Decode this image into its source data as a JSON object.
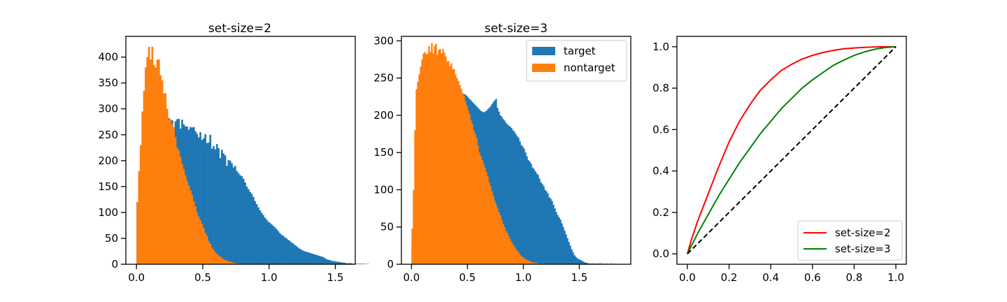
{
  "colors": {
    "target": "#1f77b4",
    "nontarget": "#ff7f0e",
    "set2": "#ff0000",
    "set3": "#008000",
    "diagonal": "#000000"
  },
  "chart_data": [
    {
      "type": "bar",
      "title": "set-size=2",
      "xlim": [
        -0.08,
        1.65
      ],
      "ylim": [
        0,
        440
      ],
      "xticks": [
        0.0,
        0.5,
        1.0,
        1.5
      ],
      "xtick_labels": [
        "0.0",
        "0.5",
        "1.0",
        "1.5"
      ],
      "yticks": [
        0,
        50,
        100,
        150,
        200,
        250,
        300,
        350,
        400
      ],
      "bin_width": 0.0125,
      "series": [
        {
          "key": "target",
          "x0": 0.0,
          "values": [
            120,
            170,
            195,
            225,
            240,
            255,
            262,
            268,
            272,
            275,
            276,
            276,
            274,
            272,
            270,
            268,
            266,
            275,
            283,
            282,
            280,
            278,
            250,
            276,
            280,
            281,
            262,
            279,
            270,
            266,
            266,
            260,
            265,
            264,
            265,
            257,
            252,
            245,
            255,
            240,
            243,
            251,
            234,
            235,
            250,
            223,
            228,
            222,
            232,
            224,
            205,
            221,
            214,
            210,
            190,
            201,
            200,
            195,
            187,
            190,
            180,
            176,
            172,
            170,
            165,
            158,
            150,
            145,
            140,
            136,
            130,
            122,
            116,
            110,
            104,
            99,
            95,
            90,
            86,
            82,
            80,
            77,
            74,
            71,
            68,
            64,
            60,
            57,
            55,
            52,
            50,
            47,
            45,
            42,
            40,
            37,
            35,
            32,
            30,
            28,
            26,
            25,
            24,
            23,
            22,
            21,
            20,
            19,
            18,
            17,
            16,
            15,
            14,
            12,
            10,
            9,
            8,
            7,
            6,
            6,
            5,
            5,
            4,
            4,
            3,
            3,
            2,
            2,
            2,
            2,
            1,
            1,
            1,
            1,
            1,
            1,
            1,
            1,
            0,
            1
          ]
        },
        {
          "key": "nontarget",
          "x0": 0.0,
          "values": [
            120,
            180,
            230,
            295,
            335,
            380,
            400,
            420,
            395,
            420,
            385,
            380,
            395,
            395,
            365,
            355,
            330,
            330,
            300,
            280,
            280,
            270,
            265,
            245,
            225,
            220,
            208,
            194,
            184,
            172,
            161,
            152,
            143,
            134,
            122,
            112,
            100,
            92,
            85,
            78,
            70,
            60,
            55,
            45,
            40,
            32,
            28,
            23,
            20,
            17,
            15,
            12,
            10,
            8,
            7,
            6,
            5,
            4,
            3,
            2,
            2,
            1,
            1,
            1,
            1
          ]
        }
      ]
    },
    {
      "type": "bar",
      "title": "set-size=3",
      "xlim": [
        -0.09,
        1.96
      ],
      "ylim": [
        0,
        306
      ],
      "xticks": [
        0.0,
        0.5,
        1.0,
        1.5
      ],
      "xtick_labels": [
        "0.0",
        "0.5",
        "1.0",
        "1.5"
      ],
      "yticks": [
        0,
        50,
        100,
        150,
        200,
        250,
        300
      ],
      "bin_width": 0.0125,
      "legend": [
        {
          "key": "target",
          "label": "target"
        },
        {
          "key": "nontarget",
          "label": "nontarget"
        }
      ],
      "legend_loc": "upper right",
      "series": [
        {
          "key": "target",
          "x0": 0.0,
          "values": [
            25,
            47,
            75,
            90,
            110,
            130,
            150,
            170,
            185,
            195,
            200,
            208,
            210,
            212,
            215,
            218,
            220,
            222,
            224,
            226,
            228,
            230,
            232,
            230,
            230,
            232,
            234,
            236,
            238,
            240,
            242,
            240,
            238,
            236,
            234,
            232,
            230,
            228,
            228,
            226,
            224,
            222,
            220,
            218,
            216,
            214,
            212,
            210,
            208,
            206,
            205,
            204,
            205,
            206,
            208,
            210,
            212,
            215,
            218,
            220,
            222,
            210,
            205,
            200,
            198,
            195,
            193,
            190,
            188,
            186,
            185,
            183,
            180,
            178,
            175,
            172,
            170,
            165,
            160,
            158,
            155,
            150,
            145,
            140,
            138,
            135,
            130,
            128,
            125,
            122,
            120,
            115,
            110,
            108,
            105,
            100,
            98,
            95,
            90,
            88,
            85,
            80,
            75,
            70,
            66,
            63,
            60,
            55,
            50,
            45,
            40,
            35,
            30,
            25,
            20,
            16,
            12,
            10,
            8,
            7,
            6,
            5,
            4,
            3,
            2,
            2,
            1,
            1,
            1,
            1,
            1,
            1,
            0,
            1,
            1,
            1,
            1,
            0,
            0,
            1,
            0,
            0,
            1
          ]
        },
        {
          "key": "nontarget",
          "x0": 0.0,
          "values": [
            48,
            100,
            180,
            235,
            245,
            255,
            265,
            275,
            283,
            285,
            282,
            283,
            293,
            285,
            297,
            283,
            293,
            296,
            281,
            288,
            289,
            283,
            289,
            284,
            279,
            272,
            273,
            266,
            270,
            262,
            262,
            255,
            250,
            246,
            241,
            236,
            230,
            226,
            219,
            213,
            207,
            202,
            193,
            188,
            180,
            175,
            170,
            160,
            150,
            145,
            140,
            135,
            130,
            124,
            118,
            110,
            105,
            98,
            92,
            85,
            80,
            75,
            70,
            66,
            60,
            54,
            50,
            45,
            42,
            38,
            34,
            30,
            27,
            24,
            21,
            18,
            16,
            13,
            11,
            10,
            8,
            7,
            6,
            5,
            4,
            3,
            3,
            2,
            2,
            2,
            1,
            1,
            1,
            1,
            1
          ]
        }
      ]
    },
    {
      "type": "line",
      "title": "",
      "xlim": [
        -0.05,
        1.05
      ],
      "ylim": [
        -0.05,
        1.05
      ],
      "xticks": [
        0.0,
        0.2,
        0.4,
        0.6,
        0.8,
        1.0
      ],
      "xtick_labels": [
        "0.0",
        "0.2",
        "0.4",
        "0.6",
        "0.8",
        "1.0"
      ],
      "yticks": [
        0.0,
        0.2,
        0.4,
        0.6,
        0.8,
        1.0
      ],
      "ytick_labels": [
        "0.0",
        "0.2",
        "0.4",
        "0.6",
        "0.8",
        "1.0"
      ],
      "legend_loc": "lower right",
      "series": [
        {
          "key": "set2",
          "name": "set-size=2",
          "x": [
            0,
            0.02,
            0.05,
            0.1,
            0.15,
            0.2,
            0.25,
            0.3,
            0.35,
            0.4,
            0.45,
            0.5,
            0.55,
            0.6,
            0.65,
            0.7,
            0.75,
            0.8,
            0.85,
            0.9,
            0.95,
            1.0
          ],
          "y": [
            0,
            0.07,
            0.16,
            0.29,
            0.42,
            0.54,
            0.64,
            0.72,
            0.79,
            0.84,
            0.885,
            0.915,
            0.94,
            0.958,
            0.972,
            0.982,
            0.99,
            0.994,
            0.997,
            0.999,
            1.0,
            1.0
          ]
        },
        {
          "key": "set3",
          "name": "set-size=3",
          "x": [
            0,
            0.02,
            0.05,
            0.1,
            0.15,
            0.2,
            0.25,
            0.3,
            0.35,
            0.4,
            0.45,
            0.5,
            0.55,
            0.6,
            0.65,
            0.7,
            0.75,
            0.8,
            0.85,
            0.9,
            0.95,
            1.0
          ],
          "y": [
            0,
            0.04,
            0.1,
            0.19,
            0.28,
            0.36,
            0.44,
            0.51,
            0.58,
            0.64,
            0.7,
            0.75,
            0.8,
            0.84,
            0.875,
            0.91,
            0.935,
            0.958,
            0.975,
            0.988,
            0.996,
            1.0
          ]
        },
        {
          "key": "diagonal",
          "name": "",
          "dashed": true,
          "x": [
            0,
            1
          ],
          "y": [
            0,
            1
          ]
        }
      ]
    }
  ]
}
